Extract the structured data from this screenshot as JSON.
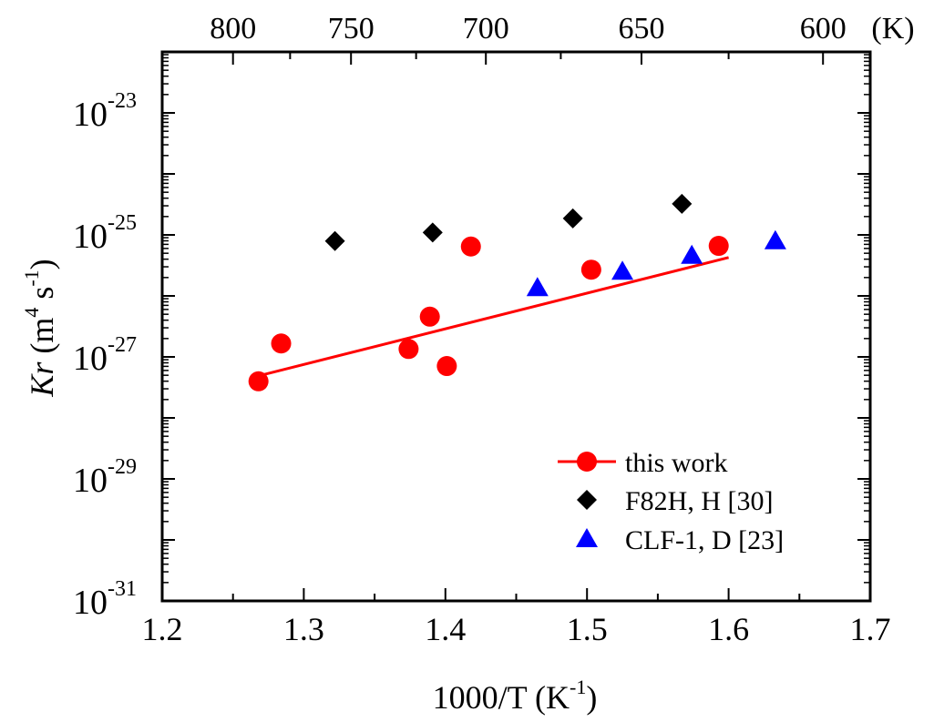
{
  "chart_data": {
    "type": "scatter",
    "xlabel": "1000/T (K",
    "xlabel_sup": "-1",
    "xlabel_end": ")",
    "ylabel_main": "Kr",
    "ylabel_unit_prefix": " (m",
    "ylabel_unit_sup1": "4",
    "ylabel_unit_mid": " s",
    "ylabel_unit_sup2": "-1",
    "ylabel_unit_end": ")",
    "xlim": [
      1.2,
      1.7
    ],
    "ylim_log10": [
      -31,
      -22
    ],
    "y_scale": "log",
    "x_ticks": [
      "1.2",
      "1.3",
      "1.4",
      "1.5",
      "1.6",
      "1.7"
    ],
    "y_tick_labels": [
      {
        "exp": -31,
        "base": "10",
        "sup": "-31"
      },
      {
        "exp": -29,
        "base": "10",
        "sup": "-29"
      },
      {
        "exp": -27,
        "base": "10",
        "sup": "-27"
      },
      {
        "exp": -25,
        "base": "10",
        "sup": "-25"
      },
      {
        "exp": -23,
        "base": "10",
        "sup": "-23"
      }
    ],
    "top_axis": {
      "unit_label": "(K)",
      "ticks": [
        {
          "T": 800,
          "label": "800"
        },
        {
          "T": 750,
          "label": "750"
        },
        {
          "T": 700,
          "label": "700"
        },
        {
          "T": 650,
          "label": "650"
        },
        {
          "T": 600,
          "label": "600"
        }
      ]
    },
    "legend_position": "bottom-right",
    "series": [
      {
        "name": "this work",
        "marker": "circle",
        "color": "#ff0000",
        "x": [
          1.268,
          1.284,
          1.374,
          1.389,
          1.401,
          1.418,
          1.503,
          1.593
        ],
        "y_log10": [
          -27.4,
          -26.78,
          -26.87,
          -26.34,
          -27.15,
          -25.19,
          -25.57,
          -25.18
        ],
        "fit": {
          "x": [
            1.27,
            1.6
          ],
          "y_log10": [
            -27.3,
            -25.37
          ]
        }
      },
      {
        "name": "F82H, H [30]",
        "marker": "diamond",
        "color": "#000000",
        "x": [
          1.322,
          1.391,
          1.49,
          1.567
        ],
        "y_log10": [
          -25.1,
          -24.96,
          -24.73,
          -24.49
        ]
      },
      {
        "name": "CLF-1, D [23]",
        "marker": "triangle",
        "color": "#0000ff",
        "x": [
          1.465,
          1.525,
          1.574,
          1.633
        ],
        "y_log10": [
          -25.87,
          -25.6,
          -25.34,
          -25.1
        ]
      }
    ]
  }
}
